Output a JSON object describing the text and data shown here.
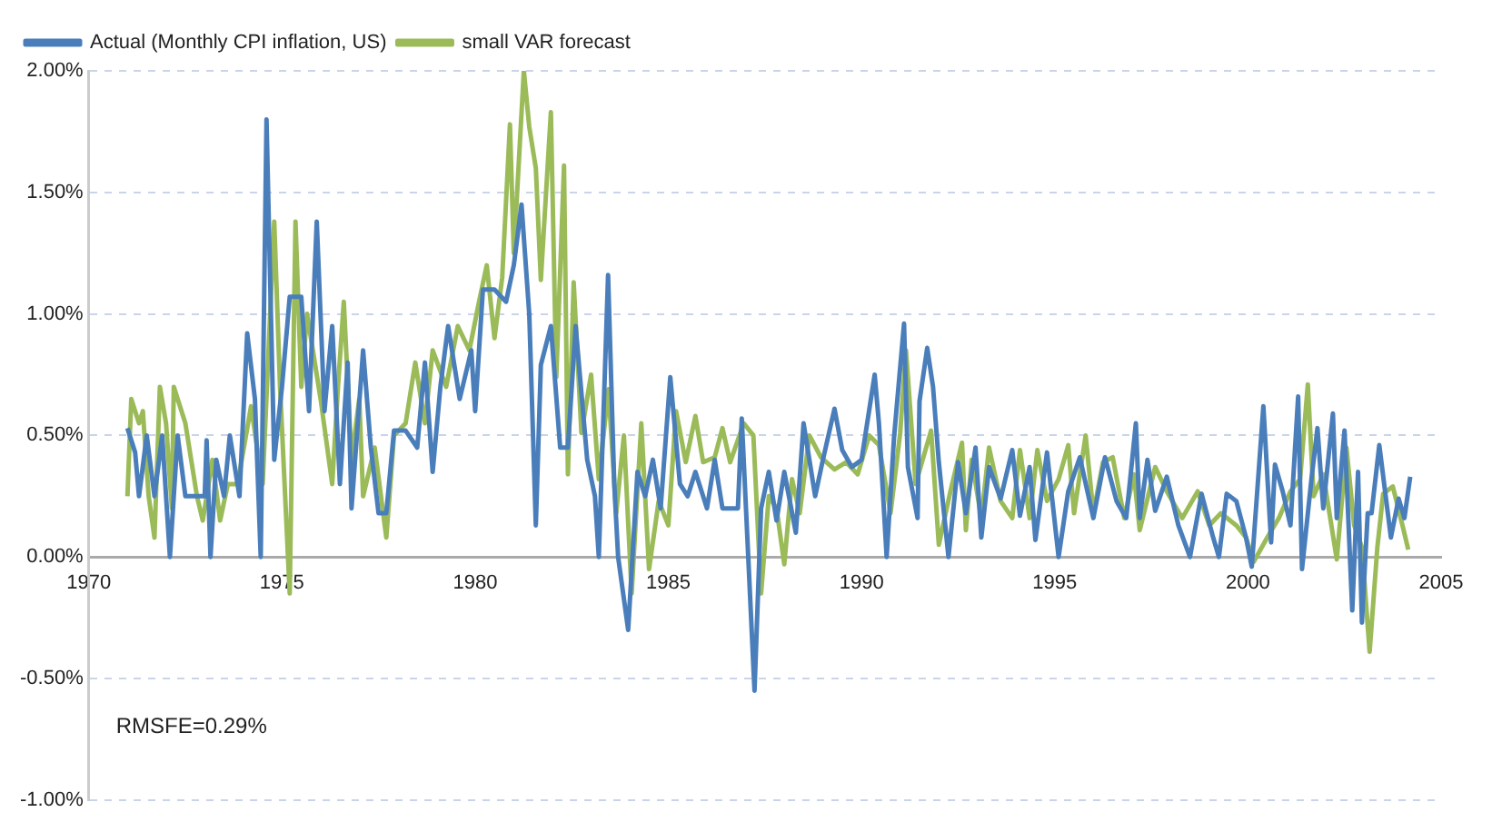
{
  "chart_data": {
    "type": "line",
    "xlim": [
      1970,
      2005
    ],
    "xticks": [
      1970,
      1975,
      1980,
      1985,
      1990,
      1995,
      2000,
      2005
    ],
    "ylim": [
      -1,
      2
    ],
    "yticks": [
      {
        "value": -1,
        "label": "-1.00%"
      },
      {
        "value": -0.5,
        "label": "-0.50%"
      },
      {
        "value": 0,
        "label": "0.00%"
      },
      {
        "value": 0.5,
        "label": "0.50%"
      },
      {
        "value": 1,
        "label": "1.00%"
      },
      {
        "value": 1.5,
        "label": "1.50%"
      },
      {
        "value": 2,
        "label": "2.00%"
      }
    ],
    "grid": "y",
    "legend": "top left",
    "marker": "none",
    "line_style": "solid",
    "annotations": [
      "RMSFE=0.29%"
    ],
    "series": [
      {
        "name": "Actual (Monthly CPI inflation, US)",
        "color": "#4a7ebb",
        "x": [
          1971.0,
          1971.2,
          1971.3,
          1971.5,
          1971.7,
          1971.9,
          1972.1,
          1972.3,
          1972.5,
          1972.8,
          1973.0,
          1973.05,
          1973.15,
          1973.3,
          1973.5,
          1973.65,
          1973.9,
          1974.1,
          1974.3,
          1974.45,
          1974.6,
          1974.8,
          1975.0,
          1975.2,
          1975.5,
          1975.7,
          1975.9,
          1976.1,
          1976.3,
          1976.5,
          1976.7,
          1976.8,
          1977.1,
          1977.3,
          1977.5,
          1977.7,
          1977.9,
          1978.2,
          1978.5,
          1978.7,
          1978.9,
          1979.1,
          1979.3,
          1979.6,
          1979.9,
          1980.0,
          1980.2,
          1980.5,
          1980.8,
          1981.0,
          1981.2,
          1981.4,
          1981.57,
          1981.7,
          1981.96,
          1982.2,
          1982.4,
          1982.6,
          1982.9,
          1983.1,
          1983.2,
          1983.44,
          1983.6,
          1983.7,
          1983.96,
          1984.2,
          1984.4,
          1984.6,
          1984.8,
          1985.05,
          1985.3,
          1985.5,
          1985.7,
          1986.0,
          1986.2,
          1986.4,
          1986.6,
          1986.8,
          1986.9,
          1987.23,
          1987.4,
          1987.6,
          1987.8,
          1988.0,
          1988.3,
          1988.5,
          1988.8,
          1989.0,
          1989.3,
          1989.5,
          1989.75,
          1990.0,
          1990.34,
          1990.45,
          1990.65,
          1990.84,
          1991.1,
          1991.2,
          1991.45,
          1991.5,
          1991.7,
          1991.85,
          1992.0,
          1992.25,
          1992.5,
          1992.7,
          1992.95,
          1993.1,
          1993.3,
          1993.6,
          1993.9,
          1994.1,
          1994.35,
          1994.5,
          1994.8,
          1995.1,
          1995.35,
          1995.65,
          1996.0,
          1996.3,
          1996.6,
          1996.85,
          1997.1,
          1997.2,
          1997.4,
          1997.6,
          1997.9,
          1998.2,
          1998.5,
          1998.8,
          1999.1,
          1999.25,
          1999.45,
          1999.7,
          1999.95,
          2000.1,
          2000.4,
          2000.6,
          2000.7,
          2000.9,
          2001.1,
          2001.3,
          2001.4,
          2001.65,
          2001.8,
          2001.95,
          2002.2,
          2002.3,
          2002.5,
          2002.7,
          2002.85,
          2002.95,
          2003.1,
          2003.2,
          2003.4,
          2003.7,
          2003.9,
          2004.05,
          2004.2
        ],
        "values": [
          0.53,
          0.43,
          0.25,
          0.5,
          0.25,
          0.5,
          0.0,
          0.5,
          0.25,
          0.25,
          0.25,
          0.48,
          0.0,
          0.4,
          0.25,
          0.5,
          0.25,
          0.92,
          0.65,
          0.0,
          1.8,
          0.4,
          0.7,
          1.07,
          1.07,
          0.6,
          1.38,
          0.6,
          0.95,
          0.3,
          0.8,
          0.2,
          0.85,
          0.45,
          0.18,
          0.18,
          0.52,
          0.52,
          0.45,
          0.8,
          0.35,
          0.7,
          0.95,
          0.65,
          0.85,
          0.6,
          1.1,
          1.1,
          1.05,
          1.2,
          1.45,
          1.0,
          0.13,
          0.79,
          0.95,
          0.45,
          0.45,
          0.95,
          0.4,
          0.25,
          0.0,
          1.16,
          0.3,
          0.0,
          -0.3,
          0.35,
          0.25,
          0.4,
          0.2,
          0.74,
          0.3,
          0.25,
          0.35,
          0.2,
          0.4,
          0.2,
          0.2,
          0.2,
          0.57,
          -0.55,
          0.2,
          0.35,
          0.15,
          0.35,
          0.1,
          0.55,
          0.25,
          0.4,
          0.61,
          0.44,
          0.37,
          0.4,
          0.75,
          0.55,
          0.0,
          0.49,
          0.96,
          0.37,
          0.16,
          0.64,
          0.86,
          0.7,
          0.39,
          0.0,
          0.39,
          0.18,
          0.45,
          0.08,
          0.37,
          0.24,
          0.44,
          0.17,
          0.37,
          0.07,
          0.43,
          0.0,
          0.27,
          0.41,
          0.16,
          0.41,
          0.23,
          0.16,
          0.55,
          0.16,
          0.4,
          0.19,
          0.33,
          0.13,
          0.0,
          0.26,
          0.08,
          0.0,
          0.26,
          0.23,
          0.08,
          -0.04,
          0.62,
          0.06,
          0.38,
          0.27,
          0.13,
          0.66,
          -0.05,
          0.33,
          0.53,
          0.2,
          0.59,
          0.16,
          0.52,
          -0.22,
          0.35,
          -0.27,
          0.18,
          0.18,
          0.46,
          0.08,
          0.24,
          0.16,
          0.33
        ]
      },
      {
        "name": "small VAR forecast",
        "color": "#9bbb59",
        "x": [
          1971.0,
          1971.1,
          1971.3,
          1971.4,
          1971.55,
          1971.7,
          1971.84,
          1972.0,
          1972.15,
          1972.2,
          1972.5,
          1972.8,
          1972.95,
          1973.2,
          1973.4,
          1973.6,
          1973.85,
          1974.2,
          1974.5,
          1974.8,
          1974.95,
          1975.2,
          1975.35,
          1975.5,
          1975.65,
          1976.0,
          1976.3,
          1976.45,
          1976.6,
          1976.8,
          1977.0,
          1977.1,
          1977.4,
          1977.7,
          1977.9,
          1978.2,
          1978.45,
          1978.7,
          1978.9,
          1979.25,
          1979.55,
          1979.85,
          1980.1,
          1980.3,
          1980.5,
          1980.7,
          1980.9,
          1981.0,
          1981.26,
          1981.4,
          1981.57,
          1981.7,
          1981.96,
          1982.1,
          1982.3,
          1982.4,
          1982.55,
          1982.75,
          1983.0,
          1983.2,
          1983.45,
          1983.65,
          1983.85,
          1984.05,
          1984.3,
          1984.5,
          1984.75,
          1985.0,
          1985.2,
          1985.45,
          1985.7,
          1985.9,
          1986.2,
          1986.4,
          1986.6,
          1986.95,
          1987.2,
          1987.4,
          1987.6,
          1987.8,
          1988.0,
          1988.2,
          1988.4,
          1988.65,
          1988.95,
          1989.3,
          1989.6,
          1989.9,
          1990.2,
          1990.45,
          1990.75,
          1991.0,
          1991.15,
          1991.4,
          1991.8,
          1992.0,
          1992.3,
          1992.6,
          1992.7,
          1992.85,
          1993.1,
          1993.3,
          1993.6,
          1993.9,
          1994.1,
          1994.35,
          1994.55,
          1994.8,
          1995.1,
          1995.35,
          1995.5,
          1995.8,
          1996.0,
          1996.25,
          1996.5,
          1996.8,
          1997.05,
          1997.2,
          1997.6,
          1997.9,
          1998.3,
          1998.7,
          1999.0,
          1999.3,
          1999.7,
          1999.95,
          2000.15,
          2000.5,
          2000.8,
          2001.1,
          2001.35,
          2001.55,
          2001.7,
          2001.95,
          2002.3,
          2002.55,
          2002.75,
          2002.95,
          2003.15,
          2003.35,
          2003.5,
          2003.75,
          2004.0,
          2004.15
        ],
        "values": [
          0.25,
          0.65,
          0.55,
          0.6,
          0.25,
          0.08,
          0.7,
          0.55,
          0.2,
          0.7,
          0.55,
          0.25,
          0.15,
          0.4,
          0.15,
          0.3,
          0.3,
          0.62,
          0.3,
          1.38,
          0.7,
          -0.15,
          1.38,
          0.7,
          1.0,
          0.65,
          0.3,
          0.7,
          1.05,
          0.4,
          0.65,
          0.25,
          0.45,
          0.08,
          0.5,
          0.55,
          0.8,
          0.55,
          0.85,
          0.7,
          0.95,
          0.85,
          1.05,
          1.2,
          0.9,
          1.15,
          1.78,
          1.25,
          2.0,
          1.77,
          1.6,
          1.14,
          1.83,
          0.74,
          1.61,
          0.34,
          1.13,
          0.51,
          0.75,
          0.32,
          0.69,
          0.18,
          0.5,
          -0.15,
          0.55,
          -0.05,
          0.23,
          0.13,
          0.6,
          0.39,
          0.58,
          0.39,
          0.41,
          0.53,
          0.39,
          0.55,
          0.5,
          -0.15,
          0.25,
          0.2,
          -0.03,
          0.32,
          0.18,
          0.5,
          0.41,
          0.36,
          0.39,
          0.34,
          0.5,
          0.46,
          0.18,
          0.51,
          0.85,
          0.3,
          0.52,
          0.05,
          0.27,
          0.47,
          0.11,
          0.4,
          0.16,
          0.45,
          0.23,
          0.16,
          0.44,
          0.16,
          0.44,
          0.23,
          0.32,
          0.46,
          0.18,
          0.5,
          0.18,
          0.39,
          0.41,
          0.16,
          0.34,
          0.11,
          0.37,
          0.27,
          0.16,
          0.27,
          0.13,
          0.18,
          0.13,
          0.08,
          -0.02,
          0.08,
          0.16,
          0.27,
          0.32,
          0.71,
          0.25,
          0.34,
          -0.01,
          0.45,
          0.13,
          0.04,
          -0.39,
          0.04,
          0.26,
          0.29,
          0.13,
          0.03
        ]
      }
    ]
  }
}
